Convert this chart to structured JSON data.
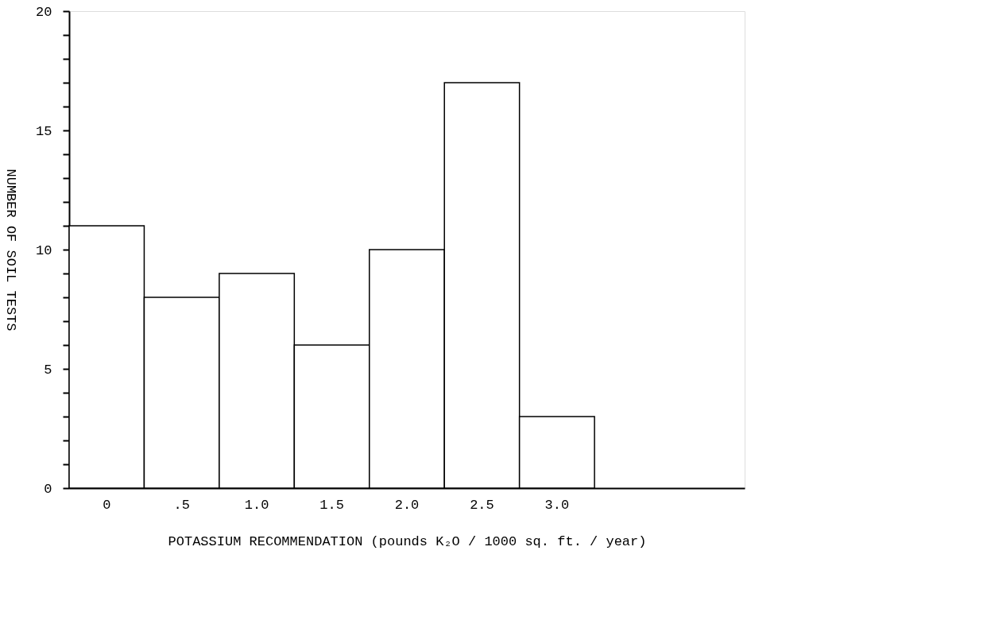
{
  "chart_data": {
    "type": "bar",
    "xlabel": "POTASSIUM RECOMMENDATION (pounds K₂O  / 1000 sq. ft. / year)",
    "ylabel": "NUMBER OF SOIL TESTS",
    "categories": [
      "0",
      ".5",
      "1.0",
      "1.5",
      "2.0",
      "2.5",
      "3.0",
      null,
      null
    ],
    "values": [
      11,
      8,
      9,
      6,
      10,
      17,
      3,
      null,
      null
    ],
    "color": "#ffffff",
    "ylim": [
      0,
      20
    ],
    "yticks": [
      0,
      {
        "value": 1,
        "label": null
      },
      {
        "value": 2,
        "label": null
      },
      {
        "value": 3,
        "label": null
      },
      {
        "value": 4,
        "label": null
      },
      5,
      {
        "value": 6,
        "label": null
      },
      {
        "value": 7,
        "label": null
      },
      {
        "value": 8,
        "label": null
      },
      {
        "value": 9,
        "label": null
      },
      10,
      {
        "value": 11,
        "label": null
      },
      {
        "value": 12,
        "label": null
      },
      {
        "value": 13,
        "label": null
      },
      {
        "value": 14,
        "label": null
      },
      15,
      {
        "value": 16,
        "label": null
      },
      {
        "value": 17,
        "label": null
      },
      {
        "value": 18,
        "label": null
      },
      {
        "value": 19,
        "label": null
      },
      20
    ],
    "grid": false
  }
}
